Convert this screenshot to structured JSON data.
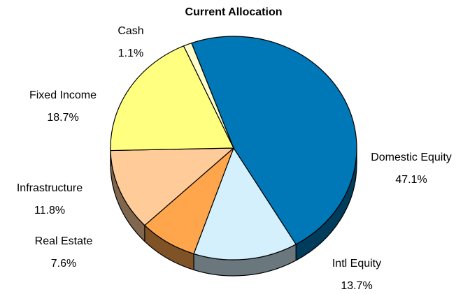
{
  "chart_data": {
    "type": "pie",
    "title": "Current Allocation",
    "categories": [
      "Domestic Equity",
      "Intl Equity",
      "Real Estate",
      "Infrastructure",
      "Fixed Income",
      "Cash"
    ],
    "values": [
      47.1,
      13.7,
      7.6,
      11.8,
      18.7,
      1.1
    ],
    "value_labels": [
      "47.1%",
      "13.7%",
      "7.6%",
      "11.8%",
      "18.7%",
      "1.1%"
    ],
    "colors": [
      "#0077b6",
      "#d4f0fc",
      "#ffa64d",
      "#ffcc99",
      "#ffff80",
      "#ffffcc"
    ]
  }
}
